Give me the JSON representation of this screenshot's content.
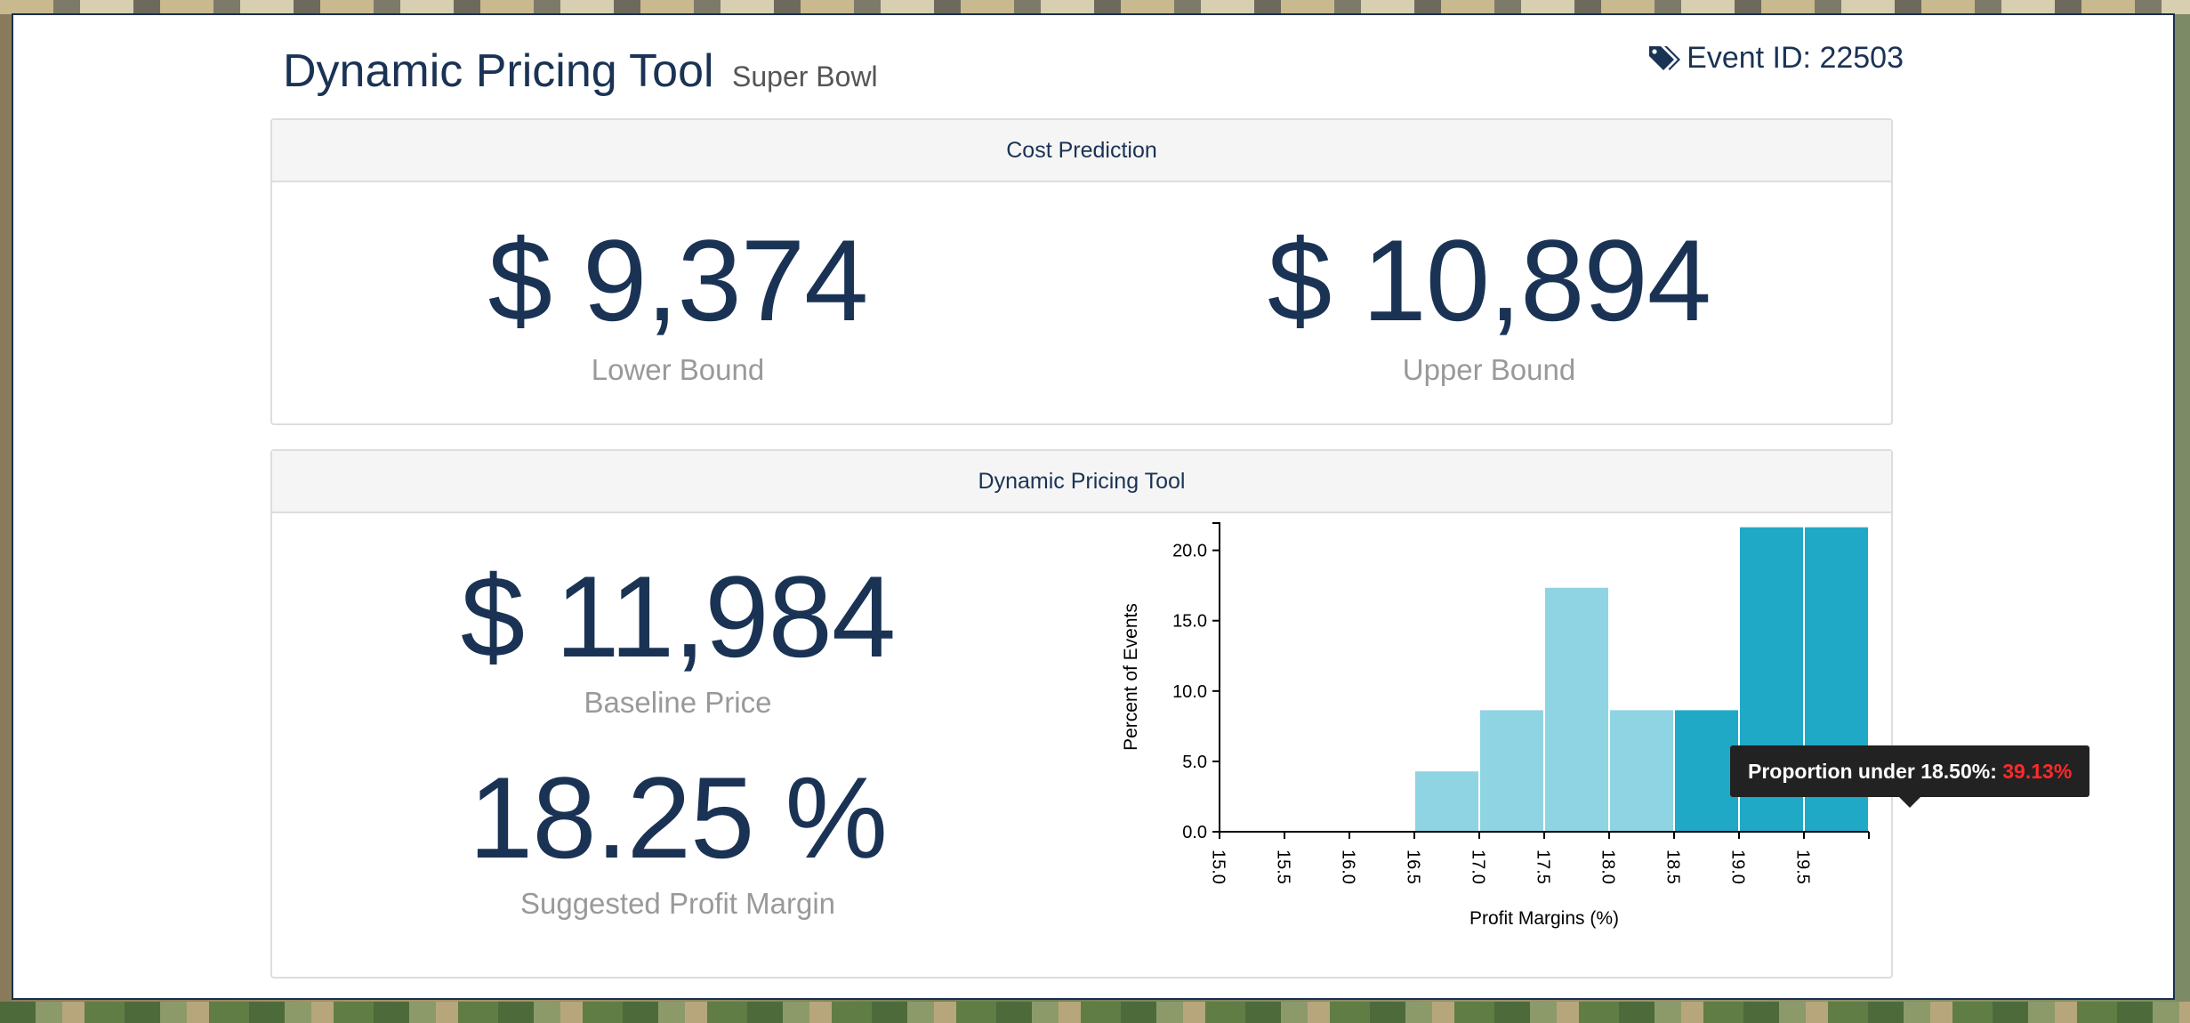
{
  "header": {
    "title": "Dynamic Pricing Tool",
    "subtitle": "Super Bowl",
    "event_id": "Event ID: 22503",
    "event_icon": "tags-icon"
  },
  "cost_prediction": {
    "heading": "Cost Prediction",
    "lower_value": "$ 9,374",
    "lower_label": "Lower Bound",
    "upper_value": "$ 10,894",
    "upper_label": "Upper Bound"
  },
  "pricing": {
    "heading": "Dynamic Pricing Tool",
    "baseline_value": "$ 11,984",
    "baseline_label": "Baseline Price",
    "margin_value": "18.25 %",
    "margin_label": "Suggested Profit Margin"
  },
  "tooltip": {
    "text": "Proportion under 18.50%:",
    "value": "39.13%"
  },
  "colors": {
    "dark_blue": "#1a3355",
    "light_bar": "#8fd4e3",
    "dark_bar": "#20a9c6",
    "tooltip_value": "#ff2a2a"
  },
  "chart_data": {
    "type": "bar",
    "xlabel": "Profit Margins (%)",
    "ylabel": "Percent of Events",
    "xlim": [
      15.0,
      20.0
    ],
    "ylim": [
      0,
      22
    ],
    "xticks": [
      "15.0",
      "15.5",
      "16.0",
      "16.5",
      "17.0",
      "17.5",
      "18.0",
      "18.5",
      "19.0",
      "19.5"
    ],
    "yticks": [
      "0.0",
      "5.0",
      "10.0",
      "15.0",
      "20.0"
    ],
    "bins": [
      {
        "start": 16.5,
        "end": 17.0,
        "value": 4.35
      },
      {
        "start": 17.0,
        "end": 17.5,
        "value": 8.7
      },
      {
        "start": 17.5,
        "end": 18.0,
        "value": 17.4
      },
      {
        "start": 18.0,
        "end": 18.5,
        "value": 8.7
      },
      {
        "start": 18.5,
        "end": 19.0,
        "value": 8.7
      },
      {
        "start": 19.0,
        "end": 19.5,
        "value": 21.7
      },
      {
        "start": 19.5,
        "end": 20.0,
        "value": 21.7
      }
    ],
    "highlight_threshold": 18.5
  }
}
